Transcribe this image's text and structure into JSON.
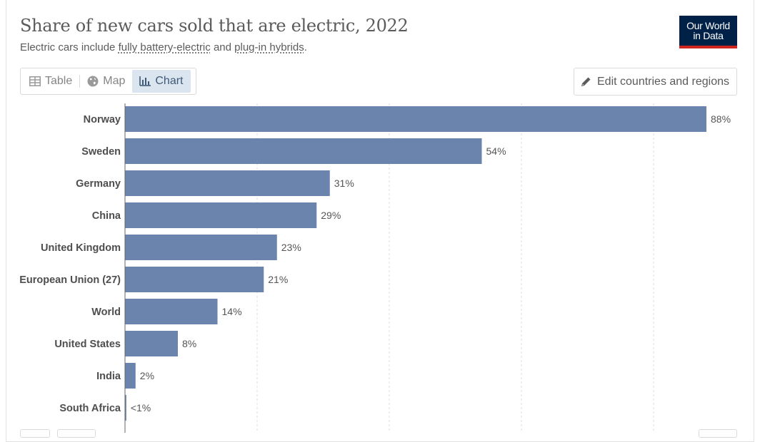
{
  "header": {
    "title": "Share of new cars sold that are electric, 2022",
    "subtitle_prefix": "Electric cars include ",
    "subtitle_link1": "fully battery-electric",
    "subtitle_mid": " and ",
    "subtitle_link2": "plug-in hybrids",
    "subtitle_suffix": "."
  },
  "logo": {
    "line1": "Our World",
    "line2": "in Data",
    "bg_color": "#002147",
    "accent_color": "#ce261e"
  },
  "tabs": [
    {
      "label": "Table",
      "icon": "table-icon",
      "active": false
    },
    {
      "label": "Map",
      "icon": "globe-icon",
      "active": false
    },
    {
      "label": "Chart",
      "icon": "chart-icon",
      "active": true
    }
  ],
  "edit_button": {
    "label": "Edit countries and regions",
    "icon": "pencil-icon"
  },
  "colors": {
    "bar": "#6b84ad",
    "grid": "#dddddd",
    "active_tab_bg": "#dbe5f0"
  },
  "chart_data": {
    "type": "bar",
    "orientation": "horizontal",
    "title": "Share of new cars sold that are electric, 2022",
    "xlabel": "",
    "ylabel": "",
    "xlim": [
      0,
      88
    ],
    "grid": "vertical",
    "categories": [
      "Norway",
      "Sweden",
      "Germany",
      "China",
      "United Kingdom",
      "European Union (27)",
      "World",
      "United States",
      "India",
      "South Africa"
    ],
    "values": [
      88,
      54,
      31,
      29,
      23,
      21,
      14,
      8,
      1.6,
      0.2
    ],
    "value_labels": [
      "88%",
      "54%",
      "31%",
      "29%",
      "23%",
      "21%",
      "14%",
      "8%",
      "2%",
      "<1%"
    ]
  }
}
